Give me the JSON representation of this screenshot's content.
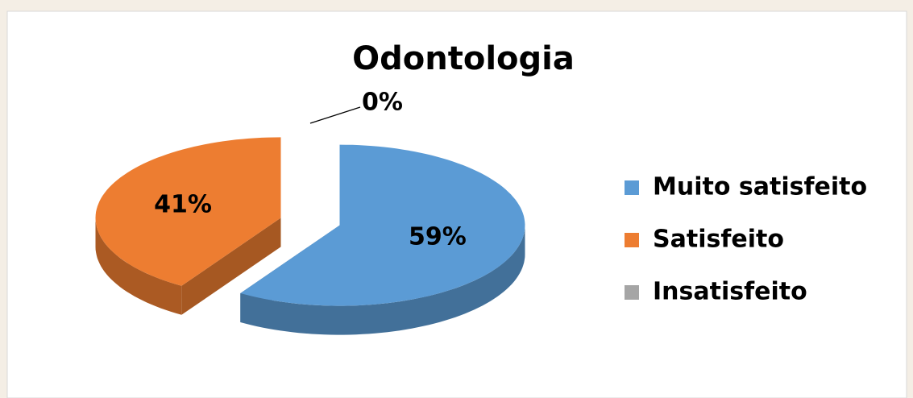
{
  "chart_data": {
    "type": "pie",
    "title": "Odontologia",
    "categories": [
      "Muito satisfeito",
      "Satisfeito",
      "Insatisfeito"
    ],
    "values": [
      59,
      41,
      0
    ],
    "value_labels": [
      "59%",
      "41%",
      "0%"
    ],
    "colors": [
      "#5b9bd5",
      "#ed7d31",
      "#a5a5a5"
    ],
    "legend": "right"
  }
}
